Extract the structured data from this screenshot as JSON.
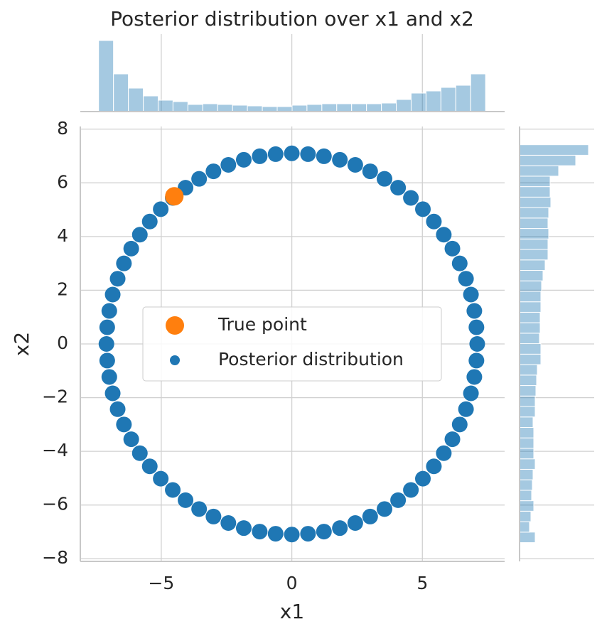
{
  "chart_data": {
    "type": "scatter",
    "title": "Posterior distribution over x1 and x2",
    "xlabel": "x1",
    "ylabel": "x2",
    "xlim": [
      -8.1,
      8.15
    ],
    "ylim": [
      -8.1,
      8.1
    ],
    "xticks": [
      {
        "value": -5,
        "label": "−5"
      },
      0,
      5
    ],
    "yticks": [
      {
        "value": -8,
        "label": "−8"
      },
      {
        "value": -6,
        "label": "−6"
      },
      {
        "value": -4,
        "label": "−4"
      },
      {
        "value": -2,
        "label": "−2"
      },
      0,
      2,
      4,
      6,
      8
    ],
    "grid": true,
    "legend": "center",
    "series": [
      {
        "name": "True point",
        "color": "#ff7f0e",
        "x": [
          -4.5
        ],
        "y": [
          5.5
        ]
      },
      {
        "name": "Posterior distribution",
        "color": "#1f77b4",
        "x": [
          7.1,
          7.07,
          6.99,
          6.86,
          6.67,
          6.43,
          6.15,
          5.82,
          5.44,
          5.02,
          4.56,
          4.07,
          3.55,
          3.0,
          2.43,
          1.84,
          1.23,
          0.62,
          0,
          -0.62,
          -1.23,
          -1.84,
          -2.43,
          -3.0,
          -3.55,
          -4.07,
          -4.56,
          -5.02,
          -5.44,
          -5.82,
          -6.15,
          -6.43,
          -6.67,
          -6.86,
          -6.99,
          -7.07,
          -7.1,
          -7.07,
          -6.99,
          -6.86,
          -6.67,
          -6.43,
          -6.15,
          -5.82,
          -5.44,
          -5.02,
          -4.56,
          -4.07,
          -3.55,
          -3.0,
          -2.43,
          -1.84,
          -1.23,
          -0.62,
          0,
          0.62,
          1.23,
          1.84,
          2.43,
          3.0,
          3.55,
          4.07,
          4.56,
          5.02,
          5.44,
          5.82,
          6.15,
          6.43,
          6.67,
          6.86,
          6.99,
          7.07
        ],
        "y": [
          0,
          0.62,
          1.23,
          1.84,
          2.43,
          3.0,
          3.55,
          4.07,
          4.56,
          5.02,
          5.44,
          5.82,
          6.15,
          6.43,
          6.67,
          6.86,
          6.99,
          7.07,
          7.1,
          7.07,
          6.99,
          6.86,
          6.67,
          6.43,
          6.15,
          5.82,
          5.44,
          5.02,
          4.56,
          4.07,
          3.55,
          3.0,
          2.43,
          1.84,
          1.23,
          0.62,
          0,
          -0.62,
          -1.23,
          -1.84,
          -2.43,
          -3.0,
          -3.55,
          -4.07,
          -4.56,
          -5.02,
          -5.44,
          -5.82,
          -6.15,
          -6.43,
          -6.67,
          -6.86,
          -6.99,
          -7.07,
          -7.1,
          -7.07,
          -6.99,
          -6.86,
          -6.67,
          -6.43,
          -6.15,
          -5.82,
          -5.44,
          -5.02,
          -4.56,
          -4.07,
          -3.55,
          -3.0,
          -2.43,
          -1.84,
          -1.23,
          -0.62
        ]
      }
    ],
    "marginal_x": {
      "color": "#1f77b4",
      "alpha": 0.4,
      "bins": [
        -7.4,
        -6.83,
        -6.26,
        -5.69,
        -5.12,
        -4.55,
        -3.98,
        -3.41,
        -2.84,
        -2.27,
        -1.7,
        -1.13,
        -0.56,
        0.01,
        0.58,
        1.15,
        1.72,
        2.29,
        2.86,
        3.43,
        4.0,
        4.57,
        5.14,
        5.71,
        6.28,
        6.85,
        7.42
      ],
      "counts": [
        100,
        53,
        33,
        22,
        16,
        14,
        10,
        11,
        10,
        9,
        8,
        7,
        7,
        9,
        10,
        11,
        11,
        11,
        11,
        12,
        17,
        26,
        29,
        34,
        37,
        53
      ]
    },
    "marginal_y": {
      "color": "#1f77b4",
      "alpha": 0.4,
      "bins": [
        -7.4,
        -7.01,
        -6.62,
        -6.23,
        -5.84,
        -5.45,
        -5.06,
        -4.67,
        -4.28,
        -3.89,
        -3.5,
        -3.11,
        -2.72,
        -2.33,
        -1.94,
        -1.55,
        -1.16,
        -0.77,
        -0.38,
        0.01,
        0.4,
        0.79,
        1.18,
        1.57,
        1.96,
        2.35,
        2.74,
        3.13,
        3.52,
        3.91,
        4.3,
        4.69,
        5.08,
        5.47,
        5.86,
        6.25,
        6.64,
        7.03,
        7.42
      ],
      "counts": [
        22,
        14,
        16,
        20,
        17,
        18,
        19,
        22,
        20,
        20,
        20,
        19,
        22,
        22,
        23,
        24,
        25,
        30,
        30,
        28,
        29,
        29,
        30,
        30,
        31,
        33,
        36,
        40,
        40,
        41,
        40,
        41,
        44,
        43,
        43,
        55,
        79,
        97
      ]
    }
  }
}
